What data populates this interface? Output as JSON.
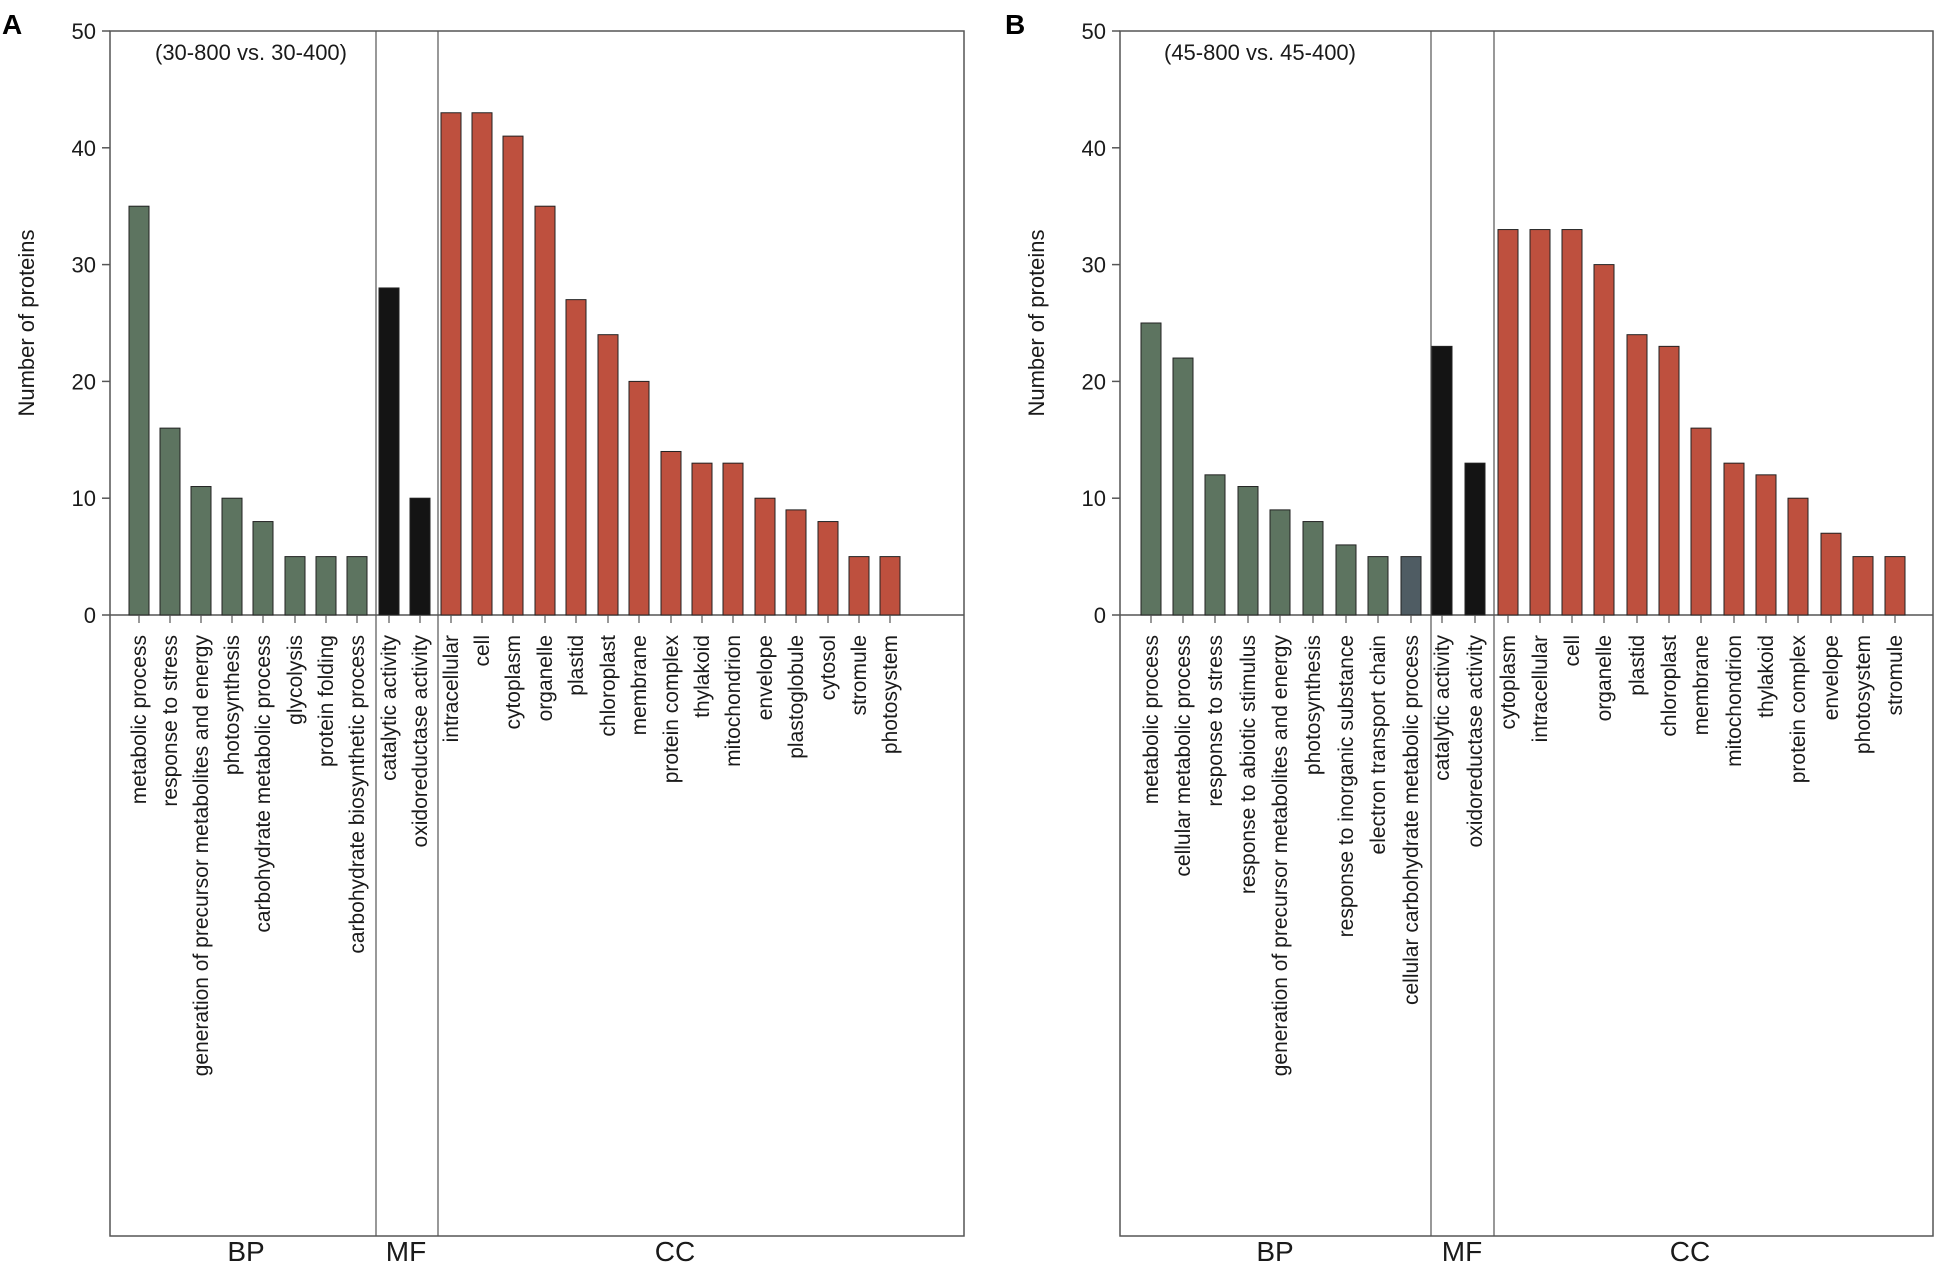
{
  "colors": {
    "BP": "#5d7460",
    "MF": "#141414",
    "CC": "#be503e",
    "BP_alt": "#4f5c63",
    "axis": "#555555"
  },
  "chart_data": [
    {
      "panel": "A",
      "type": "bar",
      "title": "(30-800 vs. 30-400)",
      "xlabel": "",
      "ylabel": "Number of proteins",
      "ylim": [
        0,
        50
      ],
      "yticks": [
        0,
        10,
        20,
        30,
        40,
        50
      ],
      "categories": [
        "metabolic process",
        "response to stress",
        "generation of precursor metabolites and energy",
        "photosynthesis",
        "carbohydrate metabolic process",
        "glycolysis",
        "protein folding",
        "carbohydrate biosynthetic process",
        "catalytic activity",
        "oxidoreductase activity",
        "intracellular",
        "cell",
        "cytoplasm",
        "organelle",
        "plastid",
        "chloroplast",
        "membrane",
        "protein complex",
        "thylakoid",
        "mitochondrion",
        "envelope",
        "plastoglobule",
        "cytosol",
        "stromule",
        "photosystem"
      ],
      "values": [
        35,
        16,
        11,
        10,
        8,
        5,
        5,
        5,
        28,
        10,
        43,
        43,
        41,
        35,
        27,
        24,
        20,
        14,
        13,
        13,
        10,
        9,
        8,
        5,
        5
      ],
      "groups": [
        {
          "name": "BP",
          "count": 8
        },
        {
          "name": "MF",
          "count": 2
        },
        {
          "name": "CC",
          "count": 15
        }
      ]
    },
    {
      "panel": "B",
      "type": "bar",
      "title": "(45-800 vs. 45-400)",
      "xlabel": "",
      "ylabel": "Number of proteins",
      "ylim": [
        0,
        50
      ],
      "yticks": [
        0,
        10,
        20,
        30,
        40,
        50
      ],
      "categories": [
        "metabolic process",
        "cellular metabolic process",
        "response to stress",
        "response to abiotic stimulus",
        "generation of precursor metabolites and energy",
        "photosynthesis",
        "response to inorganic substance",
        "electron transport chain",
        "cellular carbohydrate metabolic process",
        "catalytic activity",
        "oxidoreductase activity",
        "cytoplasm",
        "intracellular",
        "cell",
        "organelle",
        "plastid",
        "chloroplast",
        "membrane",
        "mitochondrion",
        "thylakoid",
        "protein complex",
        "envelope",
        "photosystem",
        "stromule"
      ],
      "values": [
        25,
        22,
        12,
        11,
        9,
        8,
        6,
        5,
        5,
        23,
        13,
        33,
        33,
        33,
        30,
        24,
        23,
        16,
        13,
        12,
        10,
        7,
        5,
        5
      ],
      "groups": [
        {
          "name": "BP",
          "count": 9
        },
        {
          "name": "MF",
          "count": 2
        },
        {
          "name": "CC",
          "count": 13
        }
      ]
    }
  ]
}
